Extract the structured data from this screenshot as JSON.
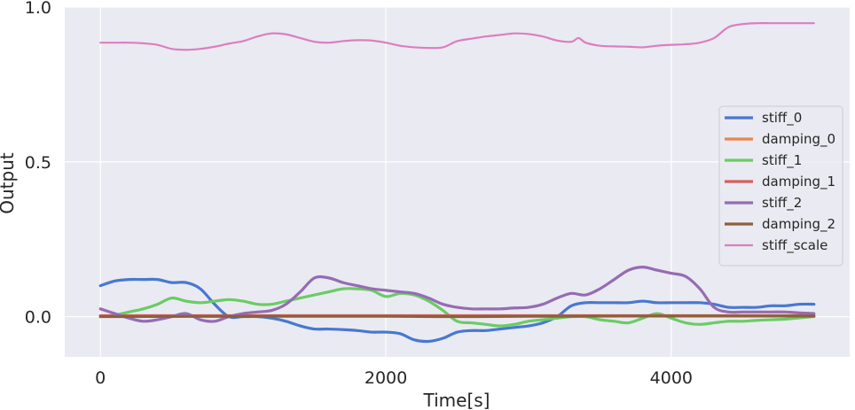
{
  "chart_data": {
    "type": "line",
    "title": "",
    "xlabel": "Time[s]",
    "ylabel": "Output",
    "xlim": [
      -250,
      5250
    ],
    "ylim": [
      -0.13,
      1.0
    ],
    "xticks": [
      0,
      2000,
      4000
    ],
    "yticks": [
      0.0,
      0.5,
      1.0
    ],
    "xtick_labels": [
      "0",
      "2000",
      "4000"
    ],
    "ytick_labels": [
      "0.0",
      "0.5",
      "1.0"
    ],
    "grid": true,
    "background": "#eaeaf2",
    "legend_position": "center-right",
    "series": [
      {
        "name": "stiff_0",
        "color": "#4878d0",
        "x": [
          0,
          100,
          200,
          300,
          400,
          500,
          600,
          700,
          800,
          900,
          1000,
          1100,
          1200,
          1300,
          1400,
          1500,
          1600,
          1700,
          1800,
          1900,
          2000,
          2100,
          2200,
          2300,
          2400,
          2500,
          2600,
          2700,
          2800,
          2900,
          3000,
          3100,
          3200,
          3300,
          3400,
          3500,
          3600,
          3700,
          3800,
          3900,
          4000,
          4100,
          4200,
          4300,
          4400,
          4500,
          4600,
          4700,
          4800,
          4900,
          5000
        ],
        "values": [
          0.1,
          0.115,
          0.12,
          0.12,
          0.12,
          0.11,
          0.11,
          0.09,
          0.04,
          0.0,
          0.0,
          0.0,
          -0.005,
          -0.015,
          -0.03,
          -0.04,
          -0.04,
          -0.042,
          -0.045,
          -0.05,
          -0.05,
          -0.055,
          -0.075,
          -0.08,
          -0.07,
          -0.05,
          -0.045,
          -0.045,
          -0.04,
          -0.035,
          -0.03,
          -0.02,
          0.0,
          0.035,
          0.045,
          0.045,
          0.045,
          0.045,
          0.05,
          0.045,
          0.045,
          0.045,
          0.045,
          0.04,
          0.03,
          0.03,
          0.03,
          0.035,
          0.035,
          0.04,
          0.04
        ]
      },
      {
        "name": "damping_0",
        "color": "#ee854a",
        "x": [
          0,
          5000
        ],
        "values": [
          0.002,
          0.002
        ]
      },
      {
        "name": "stiff_1",
        "color": "#6acc64",
        "x": [
          0,
          100,
          200,
          300,
          400,
          500,
          600,
          700,
          800,
          900,
          1000,
          1100,
          1200,
          1300,
          1400,
          1500,
          1600,
          1700,
          1800,
          1900,
          2000,
          2100,
          2200,
          2300,
          2400,
          2500,
          2600,
          2700,
          2800,
          2900,
          3000,
          3100,
          3200,
          3300,
          3400,
          3500,
          3600,
          3700,
          3800,
          3900,
          4000,
          4100,
          4200,
          4300,
          4400,
          4500,
          4600,
          4700,
          4800,
          4900,
          5000
        ],
        "values": [
          0.0,
          0.005,
          0.015,
          0.025,
          0.04,
          0.06,
          0.05,
          0.045,
          0.05,
          0.055,
          0.05,
          0.04,
          0.04,
          0.05,
          0.06,
          0.07,
          0.08,
          0.09,
          0.09,
          0.085,
          0.065,
          0.075,
          0.07,
          0.05,
          0.02,
          -0.015,
          -0.02,
          -0.025,
          -0.03,
          -0.025,
          -0.015,
          -0.01,
          -0.005,
          0.0,
          0.0,
          -0.01,
          -0.015,
          -0.02,
          -0.005,
          0.01,
          -0.005,
          -0.02,
          -0.025,
          -0.02,
          -0.015,
          -0.015,
          -0.012,
          -0.01,
          -0.008,
          -0.004,
          0.0
        ]
      },
      {
        "name": "damping_1",
        "color": "#d65f5f",
        "x": [
          0,
          5000
        ],
        "values": [
          0.003,
          0.003
        ]
      },
      {
        "name": "stiff_2",
        "color": "#956cb4",
        "x": [
          0,
          100,
          200,
          300,
          400,
          500,
          600,
          700,
          800,
          900,
          1000,
          1100,
          1200,
          1300,
          1400,
          1500,
          1600,
          1700,
          1800,
          1900,
          2000,
          2100,
          2200,
          2300,
          2400,
          2500,
          2600,
          2700,
          2800,
          2900,
          3000,
          3100,
          3200,
          3300,
          3400,
          3500,
          3600,
          3700,
          3800,
          3900,
          4000,
          4100,
          4200,
          4300,
          4400,
          4500,
          4600,
          4700,
          4800,
          4900,
          5000
        ],
        "values": [
          0.025,
          0.01,
          -0.005,
          -0.015,
          -0.01,
          0.0,
          0.01,
          -0.01,
          -0.015,
          0.0,
          0.01,
          0.015,
          0.02,
          0.04,
          0.08,
          0.125,
          0.125,
          0.11,
          0.1,
          0.09,
          0.085,
          0.08,
          0.075,
          0.06,
          0.04,
          0.03,
          0.025,
          0.025,
          0.025,
          0.028,
          0.03,
          0.04,
          0.06,
          0.075,
          0.07,
          0.09,
          0.12,
          0.15,
          0.16,
          0.15,
          0.14,
          0.13,
          0.09,
          0.03,
          0.015,
          0.015,
          0.015,
          0.015,
          0.015,
          0.012,
          0.01
        ]
      },
      {
        "name": "damping_2",
        "color": "#8c613c",
        "x": [
          0,
          1000,
          2000,
          2500,
          3000,
          4000,
          5000
        ],
        "values": [
          0.0,
          0.001,
          0.001,
          0.0,
          0.001,
          0.002,
          0.002
        ]
      },
      {
        "name": "stiff_scale",
        "color": "#dc7ec0",
        "x": [
          0,
          100,
          200,
          300,
          400,
          500,
          600,
          700,
          800,
          900,
          1000,
          1100,
          1200,
          1300,
          1400,
          1500,
          1600,
          1700,
          1800,
          1900,
          2000,
          2100,
          2200,
          2300,
          2400,
          2500,
          2600,
          2700,
          2800,
          2900,
          3000,
          3100,
          3200,
          3300,
          3350,
          3400,
          3500,
          3600,
          3700,
          3800,
          3900,
          4000,
          4100,
          4200,
          4300,
          4400,
          4500,
          4600,
          4700,
          4800,
          4900,
          5000
        ],
        "values": [
          0.885,
          0.885,
          0.885,
          0.883,
          0.878,
          0.865,
          0.862,
          0.865,
          0.872,
          0.882,
          0.89,
          0.905,
          0.915,
          0.912,
          0.9,
          0.888,
          0.885,
          0.89,
          0.893,
          0.892,
          0.885,
          0.875,
          0.87,
          0.868,
          0.87,
          0.89,
          0.898,
          0.905,
          0.91,
          0.915,
          0.913,
          0.905,
          0.892,
          0.888,
          0.9,
          0.885,
          0.875,
          0.873,
          0.872,
          0.87,
          0.875,
          0.878,
          0.88,
          0.885,
          0.9,
          0.935,
          0.945,
          0.948,
          0.948,
          0.948,
          0.948,
          0.948
        ]
      }
    ]
  }
}
